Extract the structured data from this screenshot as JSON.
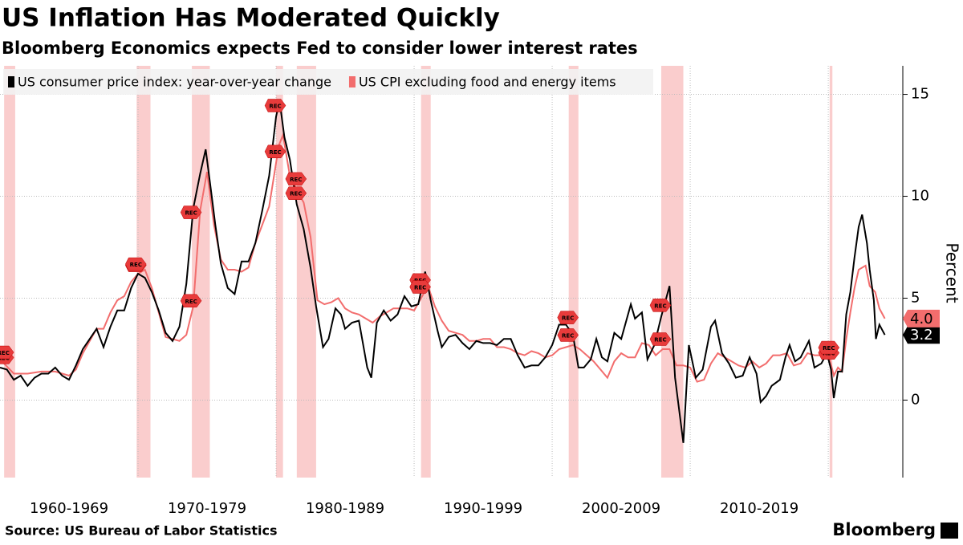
{
  "chart_data": {
    "type": "line",
    "title": "US Inflation Has Moderated Quickly",
    "subtitle": "Bloomberg Economics expects Fed to consider lower interest rates",
    "y_label": "Percent",
    "source": "Source: US Bureau of Labor Statistics",
    "brand": "Bloomberg",
    "recession_label": "REC",
    "xlim": [
      1960,
      2025.4
    ],
    "ylim": [
      -3.8,
      16.4
    ],
    "yticks": [
      0,
      5,
      10,
      15
    ],
    "xticks": [
      {
        "value": 1965,
        "label": "1960-1969"
      },
      {
        "value": 1975,
        "label": "1970-1979"
      },
      {
        "value": 1985,
        "label": "1980-1989"
      },
      {
        "value": 1995,
        "label": "1990-1999"
      },
      {
        "value": 2005,
        "label": "2000-2009"
      },
      {
        "value": 2015,
        "label": "2010-2019"
      }
    ],
    "xgrid": [
      1970,
      1980,
      1990,
      2000,
      2010,
      2020
    ],
    "grid": true,
    "legend": "top-left",
    "recessions": [
      [
        1960.3,
        1961.1
      ],
      [
        1969.9,
        1970.9
      ],
      [
        1973.9,
        1975.2
      ],
      [
        1980.0,
        1980.5
      ],
      [
        1981.5,
        1982.9
      ],
      [
        1990.5,
        1991.2
      ],
      [
        2001.2,
        2001.9
      ],
      [
        2007.9,
        2009.5
      ],
      [
        2020.1,
        2020.3
      ]
    ],
    "series": [
      {
        "name": "US consumer price index: year-over-year change",
        "color": "#000000",
        "last_label": "3.2",
        "x": [
          1960,
          1960.5,
          1961,
          1961.5,
          1962,
          1962.5,
          1963,
          1963.5,
          1964,
          1964.5,
          1965,
          1965.5,
          1966,
          1966.5,
          1967,
          1967.5,
          1968,
          1968.5,
          1969,
          1969.5,
          1970,
          1970.5,
          1971,
          1971.5,
          1972,
          1972.5,
          1973,
          1973.5,
          1974,
          1974.5,
          1974.9,
          1975.3,
          1975.6,
          1976,
          1976.5,
          1977,
          1977.5,
          1978,
          1978.5,
          1979,
          1979.5,
          1980,
          1980.25,
          1980.6,
          1981,
          1981.5,
          1982,
          1982.5,
          1982.9,
          1983.4,
          1983.8,
          1984.3,
          1984.7,
          1985,
          1985.5,
          1986,
          1986.6,
          1986.9,
          1987.3,
          1987.8,
          1988.3,
          1988.8,
          1989.3,
          1989.8,
          1990.3,
          1990.8,
          1991.2,
          1991.7,
          1992,
          1992.5,
          1993,
          1993.5,
          1994,
          1994.5,
          1995,
          1995.5,
          1996,
          1996.5,
          1997,
          1997.5,
          1998,
          1998.5,
          1999,
          1999.5,
          2000,
          2000.5,
          2001,
          2001.5,
          2001.9,
          2002.3,
          2002.8,
          2003.2,
          2003.6,
          2004,
          2004.5,
          2005,
          2005.7,
          2006,
          2006.5,
          2006.9,
          2007.4,
          2007.9,
          2008.5,
          2008.9,
          2009.5,
          2009.9,
          2010.4,
          2010.9,
          2011.5,
          2011.8,
          2012.3,
          2012.8,
          2013.3,
          2013.8,
          2014.3,
          2014.8,
          2015.1,
          2015.5,
          2015.9,
          2016.5,
          2016.9,
          2017.2,
          2017.6,
          2018,
          2018.6,
          2019,
          2019.5,
          2019.9,
          2020.2,
          2020.4,
          2020.7,
          2021,
          2021.3,
          2021.6,
          2021.9,
          2022.2,
          2022.45,
          2022.8,
          2023,
          2023.3,
          2023.45,
          2023.7,
          2024.1
        ],
        "values": [
          1.6,
          1.5,
          1.0,
          1.2,
          0.7,
          1.1,
          1.3,
          1.3,
          1.6,
          1.2,
          1.0,
          1.7,
          2.5,
          3.0,
          3.5,
          2.6,
          3.6,
          4.4,
          4.4,
          5.5,
          6.2,
          6.0,
          5.3,
          4.4,
          3.3,
          2.9,
          3.6,
          5.7,
          9.4,
          11.1,
          12.3,
          10.2,
          8.6,
          6.7,
          5.5,
          5.2,
          6.8,
          6.8,
          7.7,
          9.3,
          11.0,
          13.9,
          14.7,
          12.9,
          11.8,
          9.6,
          8.4,
          6.5,
          4.6,
          2.6,
          3.0,
          4.5,
          4.2,
          3.5,
          3.8,
          3.9,
          1.6,
          1.1,
          3.8,
          4.4,
          3.9,
          4.2,
          5.1,
          4.6,
          4.7,
          6.3,
          4.9,
          3.4,
          2.6,
          3.1,
          3.2,
          2.8,
          2.5,
          2.9,
          2.8,
          2.8,
          2.7,
          3.0,
          3.0,
          2.2,
          1.6,
          1.7,
          1.7,
          2.1,
          2.7,
          3.7,
          3.7,
          3.2,
          1.6,
          1.6,
          2.0,
          3.0,
          2.1,
          1.9,
          3.3,
          3.0,
          4.7,
          4.0,
          4.3,
          2.0,
          2.7,
          4.1,
          5.6,
          1.1,
          -2.1,
          2.7,
          1.1,
          1.5,
          3.6,
          3.9,
          2.3,
          1.8,
          1.1,
          1.2,
          2.1,
          1.3,
          -0.1,
          0.2,
          0.7,
          1.0,
          2.1,
          2.7,
          1.9,
          2.1,
          2.9,
          1.6,
          1.8,
          2.3,
          1.5,
          0.1,
          1.4,
          1.4,
          4.2,
          5.3,
          7.0,
          8.5,
          9.1,
          7.7,
          6.4,
          4.9,
          3.0,
          3.7,
          3.2
        ]
      },
      {
        "name": "US CPI excluding food and energy items",
        "color": "#f26d6d",
        "last_label": "4.0",
        "x": [
          1960,
          1961,
          1962,
          1963,
          1964,
          1965,
          1965.5,
          1966,
          1966.5,
          1967,
          1967.5,
          1968,
          1968.5,
          1969,
          1969.5,
          1970,
          1970.5,
          1971,
          1971.5,
          1972,
          1972.5,
          1973,
          1973.5,
          1974,
          1974.5,
          1975,
          1975.5,
          1976,
          1976.5,
          1977,
          1977.5,
          1978,
          1978.5,
          1979,
          1979.5,
          1980.2,
          1980.5,
          1981,
          1981.5,
          1982,
          1982.5,
          1983,
          1983.5,
          1984,
          1984.5,
          1985,
          1985.5,
          1986,
          1986.5,
          1987,
          1987.5,
          1988,
          1988.5,
          1989,
          1989.5,
          1990,
          1990.5,
          1991,
          1991.5,
          1992,
          1992.5,
          1993,
          1993.5,
          1994,
          1994.5,
          1995,
          1995.5,
          1996,
          1996.5,
          1997,
          1997.5,
          1998,
          1998.5,
          1999,
          1999.5,
          2000,
          2000.5,
          2001,
          2001.5,
          2002,
          2002.5,
          2003,
          2003.5,
          2004,
          2004.5,
          2005,
          2005.5,
          2006,
          2006.5,
          2007,
          2007.5,
          2008,
          2008.5,
          2009,
          2009.5,
          2010,
          2010.5,
          2011,
          2011.5,
          2012,
          2012.5,
          2013,
          2013.5,
          2014,
          2014.5,
          2015,
          2015.5,
          2016,
          2016.5,
          2017,
          2017.5,
          2018,
          2018.5,
          2019,
          2019.5,
          2020,
          2020.4,
          2020.7,
          2021,
          2021.3,
          2021.6,
          2021.9,
          2022.2,
          2022.7,
          2023,
          2023.4,
          2023.7,
          2024.1
        ],
        "values": [
          2.0,
          1.3,
          1.3,
          1.4,
          1.4,
          1.2,
          1.5,
          2.3,
          2.9,
          3.5,
          3.5,
          4.3,
          4.9,
          5.1,
          5.8,
          6.2,
          6.4,
          5.5,
          4.3,
          3.1,
          3.0,
          2.9,
          3.2,
          4.6,
          9.3,
          11.2,
          8.6,
          6.9,
          6.4,
          6.4,
          6.3,
          6.5,
          7.7,
          8.6,
          9.5,
          12.5,
          13.0,
          11.0,
          10.3,
          9.7,
          8.0,
          4.9,
          4.7,
          4.8,
          5.0,
          4.5,
          4.3,
          4.2,
          4.0,
          3.8,
          4.1,
          4.3,
          4.5,
          4.5,
          4.5,
          4.4,
          5.0,
          5.6,
          4.6,
          3.9,
          3.4,
          3.3,
          3.2,
          2.9,
          2.9,
          3.0,
          3.0,
          2.6,
          2.6,
          2.5,
          2.3,
          2.2,
          2.4,
          2.3,
          2.1,
          2.2,
          2.5,
          2.6,
          2.7,
          2.5,
          2.2,
          1.9,
          1.5,
          1.1,
          1.9,
          2.3,
          2.1,
          2.1,
          2.8,
          2.7,
          2.2,
          2.5,
          2.5,
          1.7,
          1.7,
          1.6,
          0.9,
          1.0,
          1.8,
          2.3,
          2.1,
          1.9,
          1.7,
          1.6,
          1.9,
          1.6,
          1.8,
          2.2,
          2.2,
          2.3,
          1.7,
          1.8,
          2.3,
          2.2,
          2.2,
          2.3,
          1.2,
          1.6,
          1.4,
          3.0,
          4.3,
          5.5,
          6.4,
          6.6,
          5.6,
          5.3,
          4.5,
          4.0
        ]
      }
    ]
  }
}
